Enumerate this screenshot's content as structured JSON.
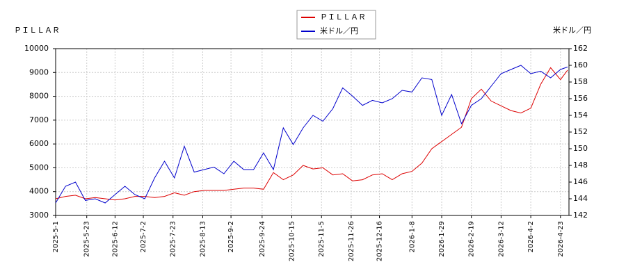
{
  "chart_data": {
    "type": "line",
    "y_label": "ＰＩＬＬＡＲ",
    "y2_label": "米ドル／円",
    "x": [
      "2025-5-1",
      "2025-5-8",
      "2025-5-15",
      "2025-5-22",
      "2025-5-29",
      "2025-6-5",
      "2025-6-12",
      "2025-6-19",
      "2025-6-26",
      "2025-7-3",
      "2025-7-10",
      "2025-7-17",
      "2025-7-24",
      "2025-7-31",
      "2025-8-7",
      "2025-8-14",
      "2025-8-21",
      "2025-8-28",
      "2025-9-4",
      "2025-9-11",
      "2025-9-18",
      "2025-9-25",
      "2025-10-2",
      "2025-10-9",
      "2025-10-16",
      "2025-10-23",
      "2025-10-30",
      "2025-11-6",
      "2025-11-13",
      "2025-11-20",
      "2025-11-27",
      "2025-12-4",
      "2025-12-11",
      "2025-12-18",
      "2025-12-25",
      "2026-1-1",
      "2026-1-8",
      "2026-1-15",
      "2026-1-22",
      "2026-1-29",
      "2026-2-5",
      "2026-2-12",
      "2026-2-19",
      "2026-2-26",
      "2026-3-5",
      "2026-3-12",
      "2026-3-19",
      "2026-3-26",
      "2026-4-2",
      "2026-4-9",
      "2026-4-16",
      "2026-4-23",
      "2026-4-28"
    ],
    "series": [
      {
        "name": "ＰＩＬＬＡＲ",
        "color": "#dd0000",
        "axis": "y",
        "values": [
          3700,
          3800,
          3850,
          3700,
          3750,
          3700,
          3650,
          3700,
          3800,
          3800,
          3750,
          3800,
          3950,
          3850,
          4000,
          4050,
          4050,
          4050,
          4100,
          4150,
          4150,
          4100,
          4800,
          4500,
          4700,
          5100,
          4950,
          5000,
          4700,
          4750,
          4450,
          4500,
          4700,
          4750,
          4500,
          4750,
          4850,
          5200,
          5800,
          6100,
          6400,
          6700,
          7900,
          8300,
          7800,
          7600,
          7400,
          7300,
          7500,
          8500,
          9200,
          8700,
          9100
        ]
      },
      {
        "name": "米ドル／円",
        "color": "#0000cc",
        "axis": "y2",
        "values": [
          143.5,
          145.5,
          146,
          143.8,
          144,
          143.5,
          144.5,
          145.5,
          144.5,
          144,
          146.5,
          148.5,
          146.5,
          150.3,
          147.2,
          147.5,
          147.8,
          147,
          148.5,
          147.5,
          147.5,
          149.5,
          147.5,
          152.5,
          150.5,
          152.5,
          154,
          153.3,
          154.8,
          157.3,
          156.3,
          155.2,
          155.8,
          155.5,
          156,
          157,
          156.8,
          158.5,
          158.3,
          154,
          156.5,
          153,
          155.2,
          156,
          157.5,
          159,
          159.5,
          160,
          159,
          159.3,
          158.5,
          159.5,
          159.8
        ]
      }
    ],
    "xlim": [
      "2025-5-1",
      "2026-4-29"
    ],
    "xticks": [
      "2025-5-1",
      "2025-5-23",
      "2025-6-12",
      "2025-7-2",
      "2025-7-23",
      "2025-8-13",
      "2025-9-2",
      "2025-9-24",
      "2025-10-15",
      "2025-11-5",
      "2025-11-26",
      "2025-12-16",
      "2026-1-8",
      "2026-1-29",
      "2026-2-19",
      "2026-3-12",
      "2026-4-2",
      "2026-4-23"
    ],
    "ylim": [
      3000,
      10000
    ],
    "yticks": [
      3000,
      4000,
      5000,
      6000,
      7000,
      8000,
      9000,
      10000
    ],
    "y2lim": [
      142,
      162
    ],
    "y2ticks": [
      142,
      144,
      146,
      148,
      150,
      152,
      154,
      156,
      158,
      160,
      162
    ],
    "grid": true
  }
}
